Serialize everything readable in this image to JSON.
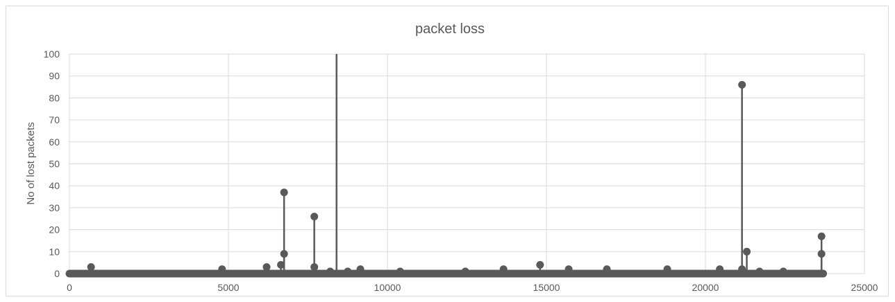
{
  "chart_data": {
    "type": "scatter",
    "style": "stem",
    "title": "packet loss",
    "xlabel": "",
    "ylabel": "No of lost packets",
    "xlim": [
      0,
      25000
    ],
    "ylim": [
      0,
      100
    ],
    "xticks": [
      "0",
      "5000",
      "10000",
      "15000",
      "20000",
      "25000"
    ],
    "yticks": [
      "0",
      "10",
      "20",
      "30",
      "40",
      "50",
      "60",
      "70",
      "80",
      "90",
      "100"
    ],
    "grid": true,
    "legend": "none",
    "color": "#595959",
    "baseline_extent": [
      0,
      23700
    ],
    "points": [
      {
        "x": 680,
        "y": 3
      },
      {
        "x": 4800,
        "y": 2
      },
      {
        "x": 6200,
        "y": 3
      },
      {
        "x": 6650,
        "y": 4
      },
      {
        "x": 6750,
        "y": 37
      },
      {
        "x": 6750,
        "y": 9
      },
      {
        "x": 7700,
        "y": 26
      },
      {
        "x": 7700,
        "y": 3
      },
      {
        "x": 8200,
        "y": 1
      },
      {
        "x": 8400,
        "y": 100
      },
      {
        "x": 8750,
        "y": 1
      },
      {
        "x": 9150,
        "y": 2
      },
      {
        "x": 10400,
        "y": 1
      },
      {
        "x": 12450,
        "y": 1
      },
      {
        "x": 13650,
        "y": 2
      },
      {
        "x": 14800,
        "y": 4
      },
      {
        "x": 15700,
        "y": 2
      },
      {
        "x": 16900,
        "y": 2
      },
      {
        "x": 18800,
        "y": 2
      },
      {
        "x": 20450,
        "y": 2
      },
      {
        "x": 21150,
        "y": 86
      },
      {
        "x": 21150,
        "y": 2
      },
      {
        "x": 21300,
        "y": 10
      },
      {
        "x": 21700,
        "y": 1
      },
      {
        "x": 22450,
        "y": 1
      },
      {
        "x": 23650,
        "y": 17
      },
      {
        "x": 23650,
        "y": 9
      },
      {
        "x": 23700,
        "y": 0
      }
    ]
  }
}
